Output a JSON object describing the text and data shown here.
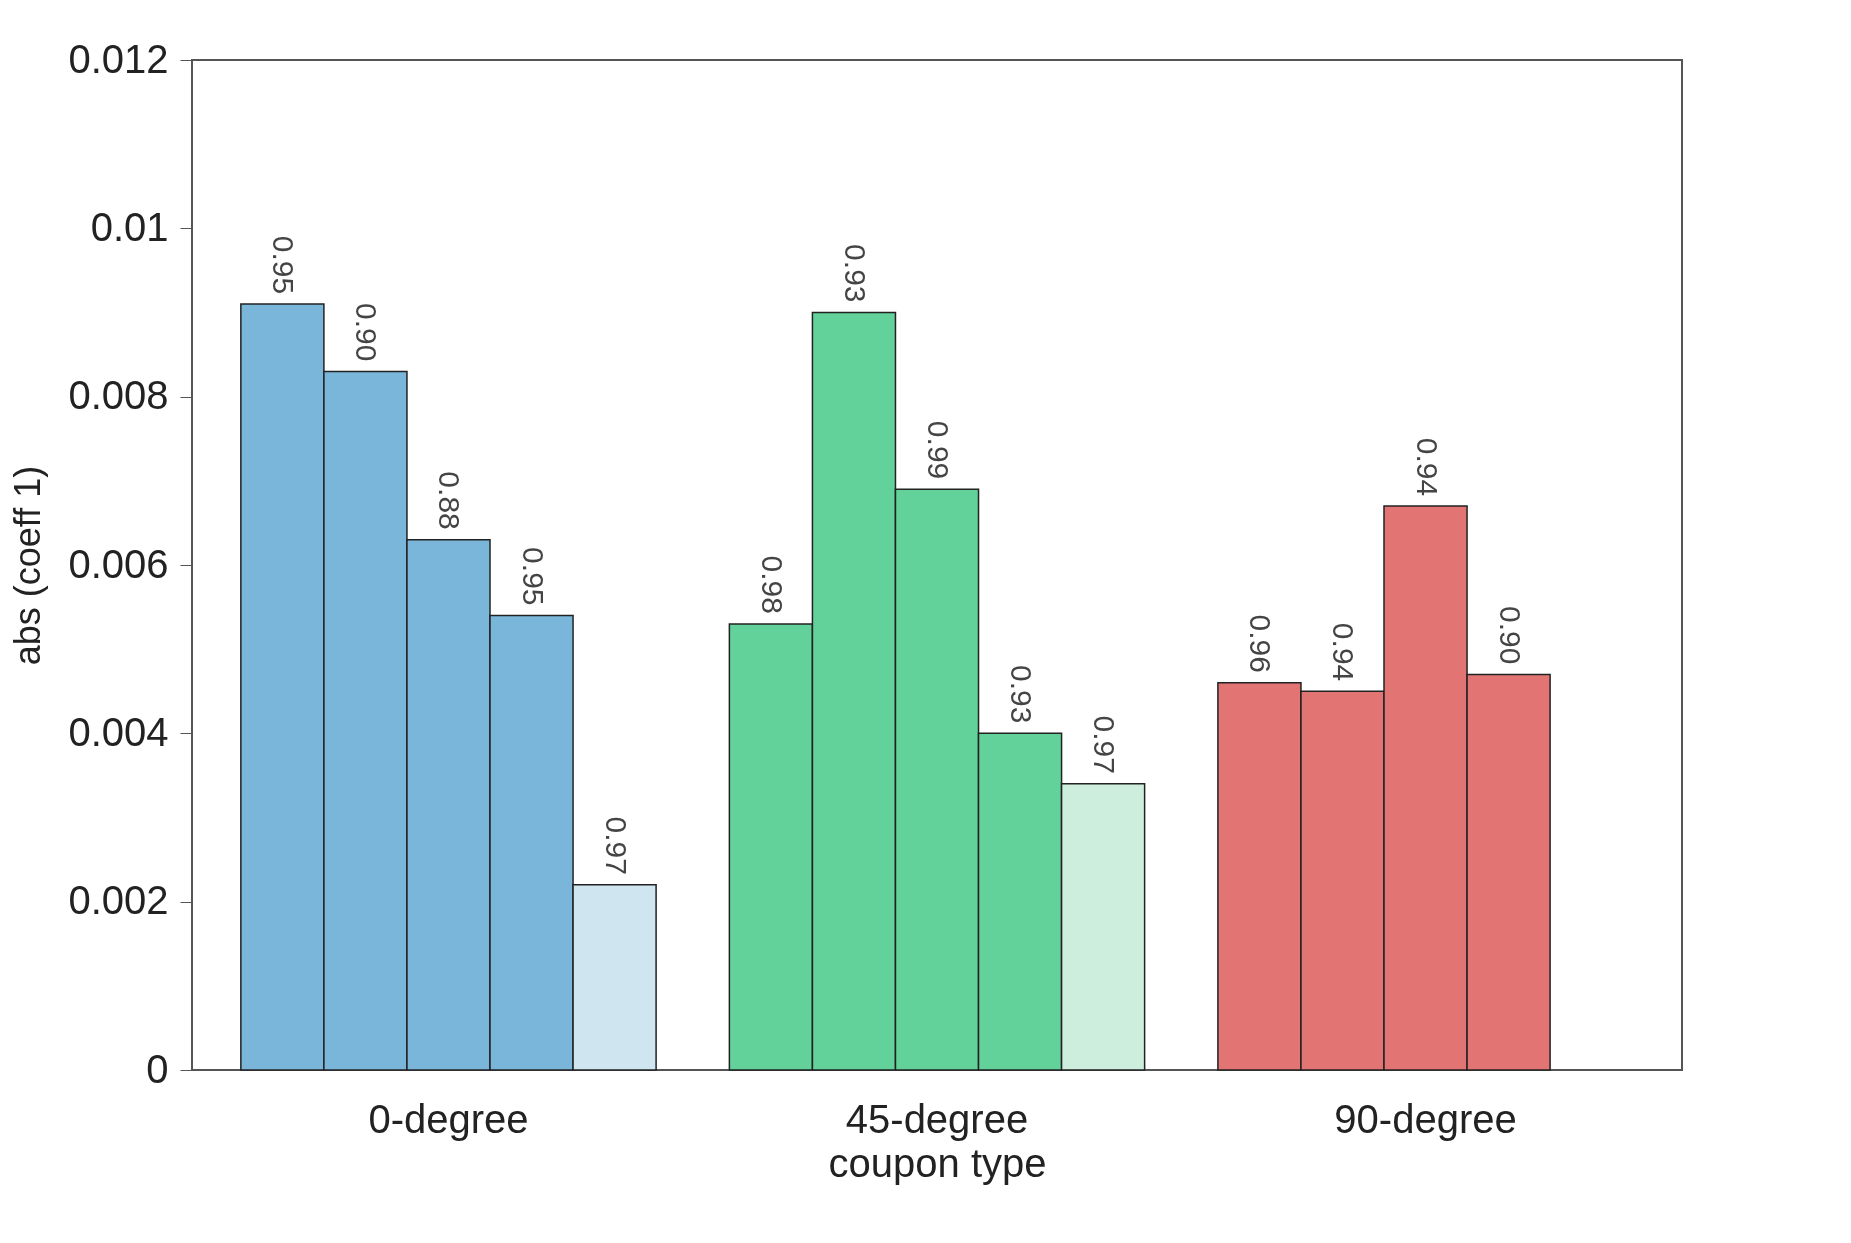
{
  "chart_data": {
    "type": "bar",
    "xlabel": "coupon type",
    "ylabel": "abs (coeff 1)",
    "categories": [
      "0-degree",
      "45-degree",
      "90-degree"
    ],
    "series": [
      {
        "colors": [
          "#7ab6da",
          "#63d29a",
          "#e27474"
        ],
        "values": [
          0.0091,
          0.0053,
          0.0046
        ]
      },
      {
        "colors": [
          "#7ab6da",
          "#63d29a",
          "#e27474"
        ],
        "values": [
          0.0083,
          0.009,
          0.0045
        ]
      },
      {
        "colors": [
          "#7ab6da",
          "#63d29a",
          "#e27474"
        ],
        "values": [
          0.0063,
          0.0069,
          0.0067
        ]
      },
      {
        "colors": [
          "#7ab6da",
          "#63d29a",
          "#e27474"
        ],
        "values": [
          0.0054,
          0.004,
          0.0047
        ]
      },
      {
        "colors": [
          "#cfe5f0",
          "#cdeedd",
          null
        ],
        "values": [
          0.0022,
          0.0034,
          null
        ]
      }
    ],
    "annotations": [
      "0.95",
      "0.90",
      "0.88",
      "0.95",
      "0.97",
      "0.98",
      "0.93",
      "0.99",
      "0.93",
      "0.97",
      "0.96",
      "0.94",
      "0.94",
      "0.90"
    ],
    "ylim": [
      0,
      0.012
    ],
    "yticks": [
      0,
      0.002,
      0.004,
      0.006,
      0.008,
      0.01,
      0.012
    ],
    "grid": false
  }
}
